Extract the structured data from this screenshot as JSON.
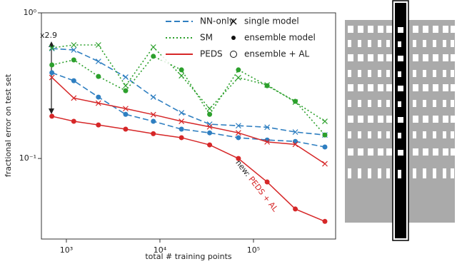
{
  "chart_data": {
    "type": "line",
    "y_label": "fractional error on test set",
    "x_label": "total # training points",
    "log_x": true,
    "log_y": true,
    "xlim": [
      541,
      755000
    ],
    "ylim": [
      0.028,
      1
    ],
    "xticks": [
      {
        "value": 1000,
        "label": "10³"
      },
      {
        "value": 10000,
        "label": "10⁴"
      },
      {
        "value": 100000,
        "label": "10⁵"
      }
    ],
    "yticks": [
      {
        "value": 0.1,
        "label": "10⁻¹"
      },
      {
        "value": 1,
        "label": "10⁰"
      }
    ],
    "x": [
      700,
      1200,
      2200,
      4300,
      8500,
      17000,
      34000,
      69000,
      140000,
      280000,
      580000
    ],
    "methods": [
      {
        "name": "NN-only",
        "color": "#2f7fc1",
        "dash": "dashed",
        "series": [
          {
            "marker": "x",
            "values": [
              0.569,
              0.556,
              0.464,
              0.362,
              0.264,
              0.206,
              0.172,
              0.168,
              0.164,
              0.152,
              0.145
            ]
          },
          {
            "marker": "dot",
            "values": [
              0.388,
              0.342,
              0.264,
              0.201,
              0.18,
              0.159,
              0.15,
              0.139,
              0.134,
              0.131,
              0.12
            ]
          }
        ]
      },
      {
        "name": "SM",
        "color": "#2ca02c",
        "dash": "dotted",
        "series": [
          {
            "marker": "x",
            "values": [
              0.575,
              0.602,
              0.602,
              0.316,
              0.582,
              0.37,
              0.22,
              0.359,
              0.32,
              0.244,
              0.18
            ]
          },
          {
            "marker": "dot",
            "values": [
              0.439,
              0.475,
              0.366,
              0.292,
              0.503,
              0.406,
              0.201,
              0.406,
              0.316,
              0.247,
              0.145
            ]
          }
        ]
      },
      {
        "name": "PEDS",
        "color": "#d62728",
        "dash": "solid",
        "series": [
          {
            "marker": "x",
            "values": [
              0.36,
              0.26,
              0.24,
              0.22,
              0.2,
              0.18,
              0.165,
              0.15,
              0.13,
              0.125,
              0.092
            ]
          },
          {
            "marker": "dot",
            "values": [
              0.195,
              0.18,
              0.17,
              0.159,
              0.148,
              0.139,
              0.124,
              0.1,
              0.069,
              0.045,
              0.037
            ]
          }
        ]
      }
    ],
    "marker_legend": [
      {
        "marker": "x",
        "label": "single model"
      },
      {
        "marker": "dot",
        "label": "ensemble model"
      },
      {
        "marker": "circle",
        "label": "ensemble + AL"
      }
    ],
    "annotations": {
      "factor": "x2.9",
      "new": "new:",
      "new_method": "PEDS + AL"
    }
  }
}
